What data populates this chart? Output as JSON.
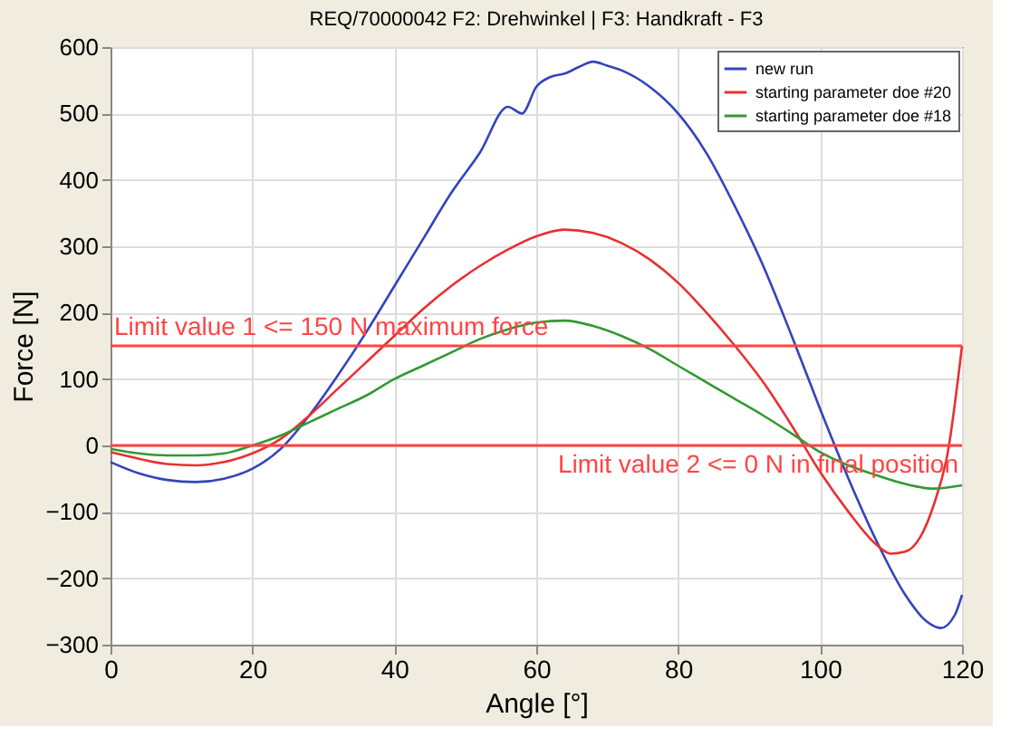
{
  "chart_data": {
    "type": "line",
    "title": "REQ/70000042 F2: Drehwinkel | F3: Handkraft - F3",
    "xlabel": "Angle [°]",
    "ylabel": "Force [N]",
    "xlim": [
      0,
      120
    ],
    "xticks": [
      0,
      20,
      40,
      60,
      80,
      100,
      120
    ],
    "ylim": [
      -300,
      600
    ],
    "yticks": [
      -300,
      -200,
      -100,
      0,
      100,
      200,
      300,
      400,
      500,
      600
    ],
    "grid": true,
    "legend": "top right",
    "line_style": "solid",
    "series": [
      {
        "name": "new run",
        "color": "#3344bb",
        "x": [
          0,
          4,
          8,
          12,
          16,
          20,
          24,
          28,
          32,
          36,
          40,
          44,
          48,
          52,
          56,
          58,
          60,
          62,
          64,
          66,
          68,
          70,
          72,
          76,
          80,
          84,
          88,
          92,
          96,
          100,
          104,
          108,
          112,
          115,
          117,
          119,
          120
        ],
        "values": [
          -25,
          -42,
          -52,
          -55,
          -50,
          -35,
          -5,
          45,
          105,
          170,
          240,
          310,
          380,
          440,
          510,
          500,
          540,
          555,
          560,
          570,
          578,
          572,
          565,
          540,
          500,
          440,
          360,
          270,
          165,
          55,
          -50,
          -145,
          -225,
          -265,
          -275,
          -255,
          -225
        ]
      },
      {
        "name": "starting parameter doe #20",
        "color": "#e83030",
        "x": [
          0,
          4,
          8,
          12,
          16,
          20,
          24,
          28,
          32,
          36,
          40,
          44,
          48,
          52,
          56,
          60,
          64,
          68,
          72,
          76,
          80,
          84,
          88,
          92,
          96,
          100,
          104,
          108,
          110,
          112,
          114,
          116,
          118,
          120
        ],
        "values": [
          -10,
          -20,
          -28,
          -30,
          -25,
          -12,
          10,
          45,
          85,
          125,
          165,
          205,
          240,
          270,
          295,
          315,
          325,
          320,
          305,
          280,
          245,
          200,
          150,
          95,
          30,
          -40,
          -100,
          -150,
          -163,
          -160,
          -140,
          -90,
          -10,
          150
        ]
      },
      {
        "name": "starting parameter doe #18",
        "color": "#339933",
        "x": [
          0,
          4,
          8,
          12,
          16,
          20,
          24,
          28,
          32,
          36,
          40,
          44,
          48,
          52,
          56,
          60,
          64,
          68,
          72,
          76,
          80,
          84,
          88,
          92,
          96,
          100,
          104,
          108,
          112,
          116,
          120
        ],
        "values": [
          -5,
          -12,
          -15,
          -15,
          -12,
          0,
          15,
          35,
          55,
          75,
          100,
          120,
          140,
          160,
          175,
          185,
          188,
          180,
          165,
          145,
          120,
          95,
          70,
          45,
          18,
          -10,
          -30,
          -45,
          -58,
          -65,
          -60
        ]
      }
    ],
    "ref_lines": [
      {
        "axis": "y",
        "value": 150,
        "label": "Limit value 1 <= 150 N maximum force",
        "color": "#ff4444"
      },
      {
        "axis": "y",
        "value": 0,
        "label": "Limit value 2 <= 0 N in final position",
        "color": "#ff4444"
      }
    ]
  }
}
